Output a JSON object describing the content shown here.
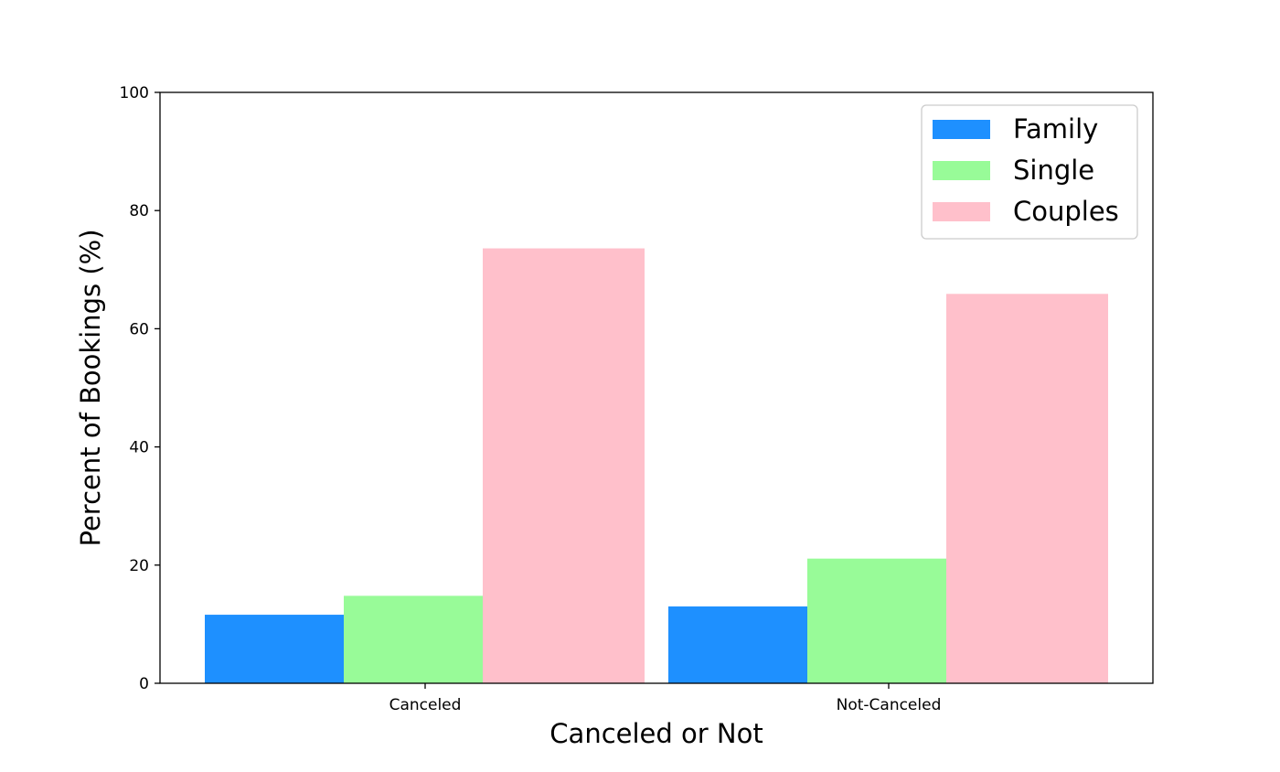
{
  "chart_data": {
    "type": "bar",
    "title": "",
    "xlabel": "Canceled or Not",
    "ylabel": "Percent of Bookings (%)",
    "categories": [
      "Canceled",
      "Not-Canceled"
    ],
    "series": [
      {
        "name": "Family",
        "values": [
          11.6,
          13.0
        ],
        "color": "#1e90ff"
      },
      {
        "name": "Single",
        "values": [
          14.8,
          21.1
        ],
        "color": "#98fb98"
      },
      {
        "name": "Couples",
        "values": [
          73.6,
          65.9
        ],
        "color": "#ffc0cb"
      }
    ],
    "ylim": [
      0,
      100
    ],
    "yticks": [
      "0",
      "20",
      "40",
      "60",
      "80",
      "100"
    ],
    "grid": false,
    "legend": "top-right"
  }
}
